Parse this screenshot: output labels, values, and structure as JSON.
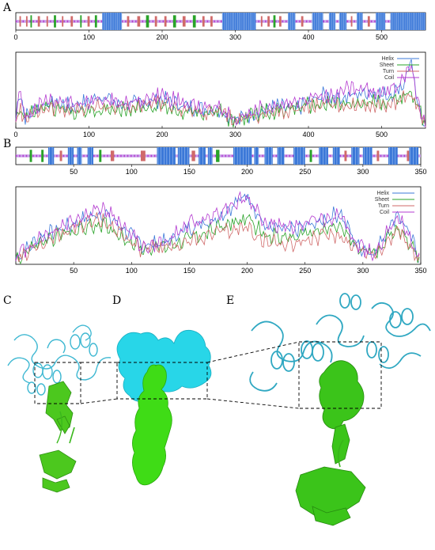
{
  "panels": {
    "A": "A",
    "B": "B",
    "C": "C",
    "D": "D",
    "E": "E"
  },
  "colors": {
    "helix": "#3b78d8",
    "sheet": "#29a329",
    "turn": "#d06a6a",
    "coil": "#b43bd0",
    "track_bg": "#c9a0e8",
    "cyan": "#38c8e0",
    "green": "#39d21c"
  },
  "chart_data": [
    {
      "type": "heatmap",
      "panel": "A",
      "description_source": "secondary structure track",
      "xlim": [
        0,
        560
      ],
      "ticks": [
        0,
        100,
        200,
        300,
        400,
        500
      ],
      "segments": [
        {
          "type": "coil",
          "start": 0,
          "end": 560
        },
        {
          "type": "turn",
          "start": 5,
          "end": 7
        },
        {
          "type": "turn",
          "start": 14,
          "end": 16
        },
        {
          "type": "sheet",
          "start": 20,
          "end": 22
        },
        {
          "type": "turn",
          "start": 30,
          "end": 33
        },
        {
          "type": "turn",
          "start": 42,
          "end": 44
        },
        {
          "type": "sheet",
          "start": 52,
          "end": 55
        },
        {
          "type": "turn",
          "start": 63,
          "end": 65
        },
        {
          "type": "turn",
          "start": 75,
          "end": 78
        },
        {
          "type": "sheet",
          "start": 88,
          "end": 90
        },
        {
          "type": "turn",
          "start": 98,
          "end": 101
        },
        {
          "type": "sheet",
          "start": 108,
          "end": 111
        },
        {
          "type": "helix",
          "start": 118,
          "end": 145
        },
        {
          "type": "turn",
          "start": 152,
          "end": 155
        },
        {
          "type": "turn",
          "start": 166,
          "end": 170
        },
        {
          "type": "sheet",
          "start": 178,
          "end": 182
        },
        {
          "type": "turn",
          "start": 190,
          "end": 193
        },
        {
          "type": "turn",
          "start": 203,
          "end": 206
        },
        {
          "type": "sheet",
          "start": 215,
          "end": 219
        },
        {
          "type": "turn",
          "start": 228,
          "end": 232
        },
        {
          "type": "sheet",
          "start": 242,
          "end": 246
        },
        {
          "type": "turn",
          "start": 255,
          "end": 258
        },
        {
          "type": "turn",
          "start": 266,
          "end": 269
        },
        {
          "type": "helix",
          "start": 282,
          "end": 328
        },
        {
          "type": "turn",
          "start": 335,
          "end": 337
        },
        {
          "type": "turn",
          "start": 344,
          "end": 347
        },
        {
          "type": "sheet",
          "start": 352,
          "end": 355
        },
        {
          "type": "turn",
          "start": 360,
          "end": 363
        },
        {
          "type": "helix",
          "start": 372,
          "end": 382
        },
        {
          "type": "turn",
          "start": 390,
          "end": 393
        },
        {
          "type": "helix",
          "start": 405,
          "end": 420
        },
        {
          "type": "helix",
          "start": 428,
          "end": 437
        },
        {
          "type": "helix",
          "start": 442,
          "end": 452
        },
        {
          "type": "turn",
          "start": 458,
          "end": 460
        },
        {
          "type": "helix",
          "start": 466,
          "end": 474
        },
        {
          "type": "turn",
          "start": 481,
          "end": 484
        },
        {
          "type": "helix",
          "start": 492,
          "end": 505
        },
        {
          "type": "helix",
          "start": 512,
          "end": 560
        }
      ]
    },
    {
      "type": "line",
      "panel": "A",
      "xlim": [
        0,
        560
      ],
      "ticks": [
        0,
        100,
        200,
        300,
        400,
        500
      ],
      "legend": [
        "Helix",
        "Sheet",
        "Turn",
        "Coil"
      ],
      "legend_position": "top-right",
      "series": [
        {
          "name": "Helix",
          "keypoints": [
            [
              0,
              0.12
            ],
            [
              5,
              0.55
            ],
            [
              12,
              0.15
            ],
            [
              40,
              0.35
            ],
            [
              80,
              0.3
            ],
            [
              120,
              0.45
            ],
            [
              140,
              0.32
            ],
            [
              170,
              0.35
            ],
            [
              200,
              0.4
            ],
            [
              240,
              0.28
            ],
            [
              280,
              0.25
            ],
            [
              300,
              0.1
            ],
            [
              330,
              0.22
            ],
            [
              360,
              0.3
            ],
            [
              380,
              0.25
            ],
            [
              400,
              0.35
            ],
            [
              420,
              0.45
            ],
            [
              450,
              0.42
            ],
            [
              480,
              0.5
            ],
            [
              510,
              0.45
            ],
            [
              530,
              0.6
            ],
            [
              540,
              0.95
            ],
            [
              548,
              0.35
            ],
            [
              560,
              0.05
            ]
          ]
        },
        {
          "name": "Sheet",
          "keypoints": [
            [
              0,
              0.1
            ],
            [
              5,
              0.3
            ],
            [
              12,
              0.15
            ],
            [
              40,
              0.3
            ],
            [
              80,
              0.22
            ],
            [
              120,
              0.25
            ],
            [
              160,
              0.28
            ],
            [
              200,
              0.3
            ],
            [
              240,
              0.2
            ],
            [
              280,
              0.22
            ],
            [
              300,
              0.08
            ],
            [
              330,
              0.2
            ],
            [
              360,
              0.25
            ],
            [
              400,
              0.3
            ],
            [
              430,
              0.35
            ],
            [
              460,
              0.3
            ],
            [
              490,
              0.35
            ],
            [
              520,
              0.4
            ],
            [
              540,
              0.5
            ],
            [
              550,
              0.3
            ],
            [
              560,
              0.05
            ]
          ]
        },
        {
          "name": "Turn",
          "keypoints": [
            [
              0,
              0.08
            ],
            [
              5,
              0.25
            ],
            [
              12,
              0.12
            ],
            [
              40,
              0.28
            ],
            [
              80,
              0.25
            ],
            [
              120,
              0.3
            ],
            [
              160,
              0.28
            ],
            [
              200,
              0.35
            ],
            [
              240,
              0.22
            ],
            [
              280,
              0.2
            ],
            [
              300,
              0.1
            ],
            [
              330,
              0.18
            ],
            [
              360,
              0.22
            ],
            [
              400,
              0.3
            ],
            [
              430,
              0.3
            ],
            [
              460,
              0.32
            ],
            [
              490,
              0.3
            ],
            [
              520,
              0.35
            ],
            [
              540,
              0.45
            ],
            [
              550,
              0.3
            ],
            [
              560,
              0.05
            ]
          ]
        },
        {
          "name": "Coil",
          "keypoints": [
            [
              0,
              0.15
            ],
            [
              5,
              0.5
            ],
            [
              12,
              0.15
            ],
            [
              40,
              0.4
            ],
            [
              80,
              0.35
            ],
            [
              120,
              0.38
            ],
            [
              160,
              0.35
            ],
            [
              200,
              0.45
            ],
            [
              240,
              0.3
            ],
            [
              280,
              0.3
            ],
            [
              300,
              0.12
            ],
            [
              330,
              0.25
            ],
            [
              360,
              0.32
            ],
            [
              400,
              0.4
            ],
            [
              430,
              0.45
            ],
            [
              460,
              0.55
            ],
            [
              490,
              0.5
            ],
            [
              520,
              0.55
            ],
            [
              540,
              0.85
            ],
            [
              550,
              0.35
            ],
            [
              560,
              0.05
            ]
          ]
        }
      ]
    },
    {
      "type": "heatmap",
      "panel": "B",
      "xlim": [
        0,
        350
      ],
      "ticks": [
        50,
        100,
        150,
        200,
        250,
        300,
        350
      ],
      "segments": [
        {
          "type": "coil",
          "start": 0,
          "end": 350
        },
        {
          "type": "sheet",
          "start": 12,
          "end": 14
        },
        {
          "type": "sheet",
          "start": 22,
          "end": 24
        },
        {
          "type": "helix",
          "start": 28,
          "end": 33
        },
        {
          "type": "turn",
          "start": 38,
          "end": 40
        },
        {
          "type": "helix",
          "start": 45,
          "end": 50
        },
        {
          "type": "helix",
          "start": 53,
          "end": 57
        },
        {
          "type": "helix",
          "start": 62,
          "end": 67
        },
        {
          "type": "sheet",
          "start": 72,
          "end": 74
        },
        {
          "type": "turn",
          "start": 82,
          "end": 85
        },
        {
          "type": "turn",
          "start": 108,
          "end": 112
        },
        {
          "type": "helix",
          "start": 122,
          "end": 138
        },
        {
          "type": "helix",
          "start": 140,
          "end": 150
        },
        {
          "type": "turn",
          "start": 152,
          "end": 155
        },
        {
          "type": "helix",
          "start": 158,
          "end": 164
        },
        {
          "type": "helix",
          "start": 166,
          "end": 170
        },
        {
          "type": "sheet",
          "start": 173,
          "end": 176
        },
        {
          "type": "helix",
          "start": 188,
          "end": 204
        },
        {
          "type": "helix",
          "start": 206,
          "end": 210
        },
        {
          "type": "helix",
          "start": 215,
          "end": 222
        },
        {
          "type": "helix",
          "start": 226,
          "end": 232
        },
        {
          "type": "helix",
          "start": 240,
          "end": 250
        },
        {
          "type": "sheet",
          "start": 254,
          "end": 256
        },
        {
          "type": "helix",
          "start": 262,
          "end": 270
        },
        {
          "type": "helix",
          "start": 274,
          "end": 280
        },
        {
          "type": "turn",
          "start": 284,
          "end": 286
        },
        {
          "type": "helix",
          "start": 290,
          "end": 297
        },
        {
          "type": "helix",
          "start": 300,
          "end": 308
        },
        {
          "type": "turn",
          "start": 312,
          "end": 314
        },
        {
          "type": "helix",
          "start": 322,
          "end": 330
        },
        {
          "type": "turn",
          "start": 338,
          "end": 340
        },
        {
          "type": "helix",
          "start": 340,
          "end": 348
        }
      ]
    },
    {
      "type": "line",
      "panel": "B",
      "xlim": [
        0,
        350
      ],
      "ticks": [
        50,
        100,
        150,
        200,
        250,
        300,
        350
      ],
      "legend": [
        "Helix",
        "Sheet",
        "Turn",
        "Coil"
      ],
      "legend_position": "top-right",
      "series": [
        {
          "name": "Helix",
          "keypoints": [
            [
              0,
              0.08
            ],
            [
              20,
              0.35
            ],
            [
              50,
              0.55
            ],
            [
              75,
              0.7
            ],
            [
              95,
              0.45
            ],
            [
              110,
              0.25
            ],
            [
              130,
              0.3
            ],
            [
              150,
              0.5
            ],
            [
              170,
              0.6
            ],
            [
              185,
              0.75
            ],
            [
              200,
              0.95
            ],
            [
              215,
              0.5
            ],
            [
              240,
              0.45
            ],
            [
              260,
              0.55
            ],
            [
              280,
              0.7
            ],
            [
              295,
              0.25
            ],
            [
              310,
              0.15
            ],
            [
              330,
              0.7
            ],
            [
              340,
              0.4
            ],
            [
              350,
              0.05
            ]
          ]
        },
        {
          "name": "Sheet",
          "keypoints": [
            [
              0,
              0.08
            ],
            [
              20,
              0.28
            ],
            [
              50,
              0.45
            ],
            [
              75,
              0.55
            ],
            [
              95,
              0.35
            ],
            [
              110,
              0.2
            ],
            [
              130,
              0.25
            ],
            [
              150,
              0.35
            ],
            [
              170,
              0.45
            ],
            [
              185,
              0.55
            ],
            [
              200,
              0.6
            ],
            [
              215,
              0.4
            ],
            [
              240,
              0.35
            ],
            [
              260,
              0.45
            ],
            [
              280,
              0.5
            ],
            [
              295,
              0.2
            ],
            [
              310,
              0.15
            ],
            [
              330,
              0.5
            ],
            [
              340,
              0.3
            ],
            [
              350,
              0.05
            ]
          ]
        },
        {
          "name": "Turn",
          "keypoints": [
            [
              0,
              0.06
            ],
            [
              20,
              0.25
            ],
            [
              50,
              0.5
            ],
            [
              75,
              0.6
            ],
            [
              95,
              0.35
            ],
            [
              110,
              0.2
            ],
            [
              130,
              0.22
            ],
            [
              150,
              0.3
            ],
            [
              170,
              0.4
            ],
            [
              185,
              0.45
            ],
            [
              200,
              0.5
            ],
            [
              215,
              0.3
            ],
            [
              240,
              0.28
            ],
            [
              260,
              0.35
            ],
            [
              280,
              0.4
            ],
            [
              295,
              0.2
            ],
            [
              310,
              0.12
            ],
            [
              330,
              0.45
            ],
            [
              340,
              0.25
            ],
            [
              350,
              0.05
            ]
          ]
        },
        {
          "name": "Coil",
          "keypoints": [
            [
              0,
              0.1
            ],
            [
              20,
              0.35
            ],
            [
              50,
              0.6
            ],
            [
              75,
              0.75
            ],
            [
              95,
              0.5
            ],
            [
              110,
              0.22
            ],
            [
              130,
              0.3
            ],
            [
              150,
              0.55
            ],
            [
              170,
              0.65
            ],
            [
              185,
              0.8
            ],
            [
              200,
              0.9
            ],
            [
              215,
              0.55
            ],
            [
              240,
              0.5
            ],
            [
              260,
              0.6
            ],
            [
              280,
              0.65
            ],
            [
              295,
              0.25
            ],
            [
              310,
              0.15
            ],
            [
              330,
              0.65
            ],
            [
              340,
              0.35
            ],
            [
              350,
              0.05
            ]
          ]
        }
      ]
    }
  ]
}
